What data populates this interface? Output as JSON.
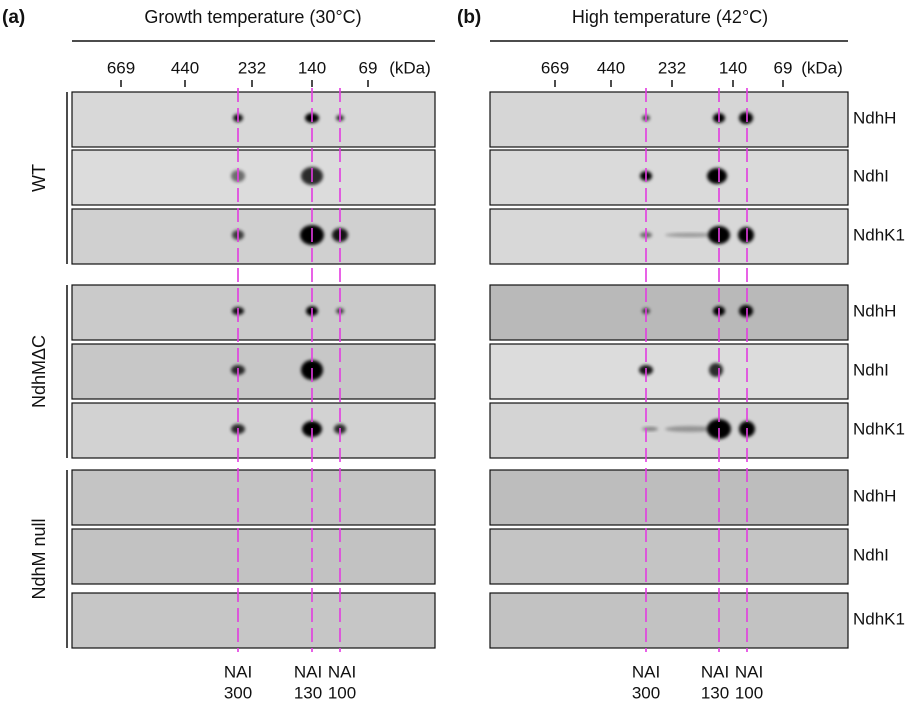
{
  "panels": [
    {
      "label": "(a)",
      "title": "Growth temperature (30°C)",
      "markers": [
        669,
        440,
        232,
        140,
        69
      ],
      "unit": "(kDa)"
    },
    {
      "label": "(b)",
      "title": "High temperature (42°C)",
      "markers": [
        669,
        440,
        232,
        140,
        69
      ],
      "unit": "(kDa)"
    }
  ],
  "groups": [
    "WT",
    "NdhMΔC",
    "NdhM null"
  ],
  "proteins": [
    "NdhH",
    "NdhI",
    "NdhK1"
  ],
  "complexes": [
    {
      "name": "NAI",
      "size": 300
    },
    {
      "name": "NAI",
      "size": 130
    },
    {
      "name": "NAI",
      "size": 100
    }
  ]
}
